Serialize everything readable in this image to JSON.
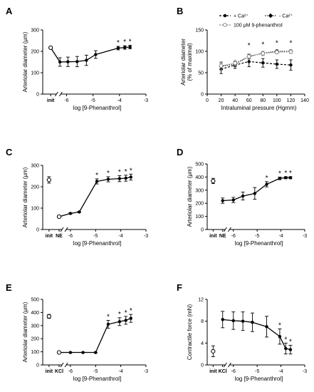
{
  "colors": {
    "ink": "#000000",
    "gray": "#8c8c8c",
    "light": "#bdbdbd"
  },
  "chart_data": [
    {
      "id": "A",
      "type": "line",
      "panel_label": "A",
      "ylabel": "Arteriolar diameter (μm)",
      "xlabel": "log [9-Phenanthrol]",
      "ylim": [
        0,
        300
      ],
      "yticks": [
        0,
        100,
        200,
        300
      ],
      "xlim": [
        -6.9,
        -3
      ],
      "xticks": [
        -6,
        -5,
        -4,
        -3
      ],
      "xtick_labels": [
        "-6",
        "-5",
        "-4",
        "-3"
      ],
      "special_ticks": [
        {
          "x": -6.6,
          "label": "init"
        }
      ],
      "break_x": -6.3,
      "points": [
        {
          "x": -6.6,
          "y": 217,
          "err": 5,
          "marker": "open-circle",
          "star": ""
        },
        {
          "x": -6.25,
          "y": 150,
          "err": 20,
          "marker": "dot",
          "star": ""
        },
        {
          "x": -5.95,
          "y": 151,
          "err": 22,
          "marker": "dot",
          "star": ""
        },
        {
          "x": -5.6,
          "y": 152,
          "err": 24,
          "marker": "dot",
          "star": ""
        },
        {
          "x": -5.25,
          "y": 158,
          "err": 24,
          "marker": "dot",
          "star": ""
        },
        {
          "x": -4.9,
          "y": 185,
          "err": 18,
          "marker": "dot",
          "star": ""
        },
        {
          "x": -4.05,
          "y": 215,
          "err": 8,
          "marker": "dot",
          "star": "*"
        },
        {
          "x": -3.8,
          "y": 218,
          "err": 8,
          "marker": "dot",
          "star": "*"
        },
        {
          "x": -3.6,
          "y": 220,
          "err": 8,
          "marker": "dot",
          "star": "*"
        }
      ]
    },
    {
      "id": "B",
      "type": "line",
      "panel_label": "B",
      "ylabel": "Arteriolar diameter\n(% of maximal)",
      "xlabel": "Intraluminal pressure (Hgmm)",
      "ylim": [
        0,
        150
      ],
      "yticks": [
        0,
        50,
        100,
        150
      ],
      "xlim": [
        0,
        140
      ],
      "xticks": [
        0,
        20,
        40,
        60,
        80,
        100,
        120,
        140
      ],
      "xtick_labels": [
        "0",
        "20",
        "40",
        "60",
        "80",
        "100",
        "120",
        "140"
      ],
      "legend": [
        {
          "label": "+ Ca²⁺",
          "marker": "dot",
          "style": "dash"
        },
        {
          "label": "- Ca²⁺",
          "marker": "diamond",
          "style": "dot"
        },
        {
          "label": "100 μM 9-phenanthrol",
          "marker": "open-circle",
          "style": "gray"
        }
      ],
      "series": [
        {
          "name": "+ Ca²⁺",
          "marker": "dot",
          "style": "dash",
          "x": [
            20,
            40,
            60,
            80,
            100,
            120
          ],
          "values": [
            58,
            68,
            76,
            73,
            70,
            68
          ],
          "err": [
            10,
            8,
            12,
            10,
            10,
            12
          ]
        },
        {
          "name": "- Ca²⁺",
          "marker": "diamond",
          "style": "dot",
          "x": [
            20,
            40,
            60,
            80,
            100,
            120
          ],
          "values": [
            65,
            70,
            88,
            96,
            100,
            100
          ],
          "err": [
            8,
            6,
            5,
            4,
            3,
            3
          ]
        },
        {
          "name": "100 μM 9-phenanthrol",
          "marker": "open-circle",
          "style": "gray",
          "x": [
            20,
            40,
            60,
            80,
            100,
            120
          ],
          "values": [
            66,
            72,
            88,
            95,
            98,
            99
          ],
          "err": [
            10,
            7,
            6,
            5,
            4,
            4
          ]
        }
      ],
      "stars": [
        {
          "x": 60,
          "y": 108,
          "text": "*"
        },
        {
          "x": 80,
          "y": 111,
          "text": "*"
        },
        {
          "x": 100,
          "y": 114,
          "text": "*"
        },
        {
          "x": 120,
          "y": 114,
          "text": "*"
        }
      ]
    },
    {
      "id": "C",
      "type": "line",
      "panel_label": "C",
      "ylabel": "Arteriolar diameter (μm)",
      "xlabel": "log [9-Phenanthrol]",
      "ylim": [
        0,
        300
      ],
      "yticks": [
        0,
        100,
        200,
        300
      ],
      "xlim": [
        -7.1,
        -3
      ],
      "xticks": [
        -6,
        -5,
        -4,
        -3
      ],
      "xtick_labels": [
        "-6",
        "-5",
        "-4",
        "-3"
      ],
      "special_ticks": [
        {
          "x": -6.85,
          "label": "init"
        },
        {
          "x": -6.45,
          "label": "NE"
        }
      ],
      "break_x": -6.25,
      "points": [
        {
          "x": -6.85,
          "y": 232,
          "err": 15,
          "marker": "open-circle",
          "star": ""
        },
        {
          "x": -6.45,
          "y": 60,
          "err": 3,
          "marker": "open-circle",
          "star": ""
        },
        {
          "x": -6.0,
          "y": 75,
          "err": 3,
          "marker": "dot",
          "star": ""
        },
        {
          "x": -5.65,
          "y": 82,
          "err": 3,
          "marker": "dot",
          "star": ""
        },
        {
          "x": -4.95,
          "y": 225,
          "err": 12,
          "marker": "dot",
          "star": "*"
        },
        {
          "x": -4.5,
          "y": 235,
          "err": 12,
          "marker": "dot",
          "star": "*"
        },
        {
          "x": -4.05,
          "y": 238,
          "err": 14,
          "marker": "dot",
          "star": "*"
        },
        {
          "x": -3.8,
          "y": 240,
          "err": 14,
          "marker": "dot",
          "star": "*"
        },
        {
          "x": -3.6,
          "y": 245,
          "err": 14,
          "marker": "dot",
          "star": "*"
        }
      ]
    },
    {
      "id": "D",
      "type": "line",
      "panel_label": "D",
      "ylabel": "Arteriolar diameter (μm)",
      "xlabel": "log [9-Phenanthrol]",
      "ylim": [
        0,
        500
      ],
      "yticks": [
        0,
        100,
        200,
        300,
        400,
        500
      ],
      "xlim": [
        -7.1,
        -3
      ],
      "xticks": [
        -6,
        -5,
        -4,
        -3
      ],
      "xtick_labels": [
        "-6",
        "-5",
        "-4",
        "-3"
      ],
      "special_ticks": [
        {
          "x": -6.85,
          "label": "init"
        },
        {
          "x": -6.45,
          "label": "NE"
        }
      ],
      "break_x": -6.25,
      "points": [
        {
          "x": -6.85,
          "y": 370,
          "err": 20,
          "marker": "open-circle",
          "star": ""
        },
        {
          "x": -6.45,
          "y": 220,
          "err": 20,
          "marker": "dot",
          "star": ""
        },
        {
          "x": -6.0,
          "y": 225,
          "err": 20,
          "marker": "dot",
          "star": ""
        },
        {
          "x": -5.6,
          "y": 255,
          "err": 30,
          "marker": "dot",
          "star": ""
        },
        {
          "x": -5.1,
          "y": 275,
          "err": 45,
          "marker": "dot",
          "star": ""
        },
        {
          "x": -4.6,
          "y": 345,
          "err": 20,
          "marker": "dot",
          "star": "*"
        },
        {
          "x": -4.05,
          "y": 390,
          "err": 10,
          "marker": "dot",
          "star": "*"
        },
        {
          "x": -3.8,
          "y": 395,
          "err": 8,
          "marker": "dot",
          "star": "*"
        },
        {
          "x": -3.6,
          "y": 395,
          "err": 8,
          "marker": "dot",
          "star": "*"
        }
      ]
    },
    {
      "id": "E",
      "type": "line",
      "panel_label": "E",
      "ylabel": "Arteriolar diameter (μm)",
      "xlabel": "log [9-Phenanthrol]",
      "ylim": [
        0,
        500
      ],
      "yticks": [
        0,
        100,
        200,
        300,
        400,
        500
      ],
      "xlim": [
        -7.1,
        -3
      ],
      "xticks": [
        -6,
        -5,
        -4,
        -3
      ],
      "xtick_labels": [
        "-6",
        "-5",
        "-4",
        "-3"
      ],
      "special_ticks": [
        {
          "x": -6.85,
          "label": "init"
        },
        {
          "x": -6.45,
          "label": "KCl"
        }
      ],
      "break_x": -6.25,
      "points": [
        {
          "x": -6.85,
          "y": 370,
          "err": 15,
          "marker": "open-circle",
          "star": ""
        },
        {
          "x": -6.45,
          "y": 95,
          "err": 5,
          "marker": "open-circle",
          "star": ""
        },
        {
          "x": -6.0,
          "y": 95,
          "err": 3,
          "marker": "dot",
          "star": ""
        },
        {
          "x": -5.5,
          "y": 95,
          "err": 3,
          "marker": "dot",
          "star": ""
        },
        {
          "x": -5.0,
          "y": 95,
          "err": 3,
          "marker": "dot",
          "star": ""
        },
        {
          "x": -4.5,
          "y": 310,
          "err": 30,
          "marker": "dot",
          "star": "*"
        },
        {
          "x": -4.05,
          "y": 330,
          "err": 30,
          "marker": "dot",
          "star": "*"
        },
        {
          "x": -3.8,
          "y": 340,
          "err": 30,
          "marker": "dot",
          "star": "*"
        },
        {
          "x": -3.6,
          "y": 355,
          "err": 30,
          "marker": "dot",
          "star": "*"
        }
      ]
    },
    {
      "id": "F",
      "type": "line",
      "panel_label": "F",
      "ylabel": "Contractile force (mN)",
      "xlabel": "log [9-Phenanthrol]",
      "ylim": [
        0,
        12
      ],
      "yticks": [
        0,
        4,
        8,
        12
      ],
      "xlim": [
        -7.1,
        -3
      ],
      "xticks": [
        -6,
        -5,
        -4,
        -3
      ],
      "xtick_labels": [
        "-6",
        "-5",
        "-4",
        "-3"
      ],
      "special_ticks": [
        {
          "x": -6.85,
          "label": "init"
        },
        {
          "x": -6.45,
          "label": "KCl"
        }
      ],
      "break_x": -6.25,
      "points": [
        {
          "x": -6.85,
          "y": 2.5,
          "err": 1.0,
          "marker": "open-circle",
          "star": ""
        },
        {
          "x": -6.45,
          "y": 8.3,
          "err": 1.5,
          "marker": "dot",
          "star": ""
        },
        {
          "x": -6.0,
          "y": 8.1,
          "err": 1.6,
          "marker": "dot",
          "star": ""
        },
        {
          "x": -5.6,
          "y": 8.0,
          "err": 1.7,
          "marker": "dot",
          "star": ""
        },
        {
          "x": -5.2,
          "y": 7.8,
          "err": 1.7,
          "marker": "dot",
          "star": ""
        },
        {
          "x": -4.6,
          "y": 7.0,
          "err": 1.9,
          "marker": "dot",
          "star": ""
        },
        {
          "x": -4.05,
          "y": 5.2,
          "err": 1.4,
          "marker": "dot",
          "star": "*"
        },
        {
          "x": -3.8,
          "y": 3.0,
          "err": 1.0,
          "marker": "dot",
          "star": "*"
        },
        {
          "x": -3.6,
          "y": 2.8,
          "err": 0.8,
          "marker": "dot",
          "star": "*"
        }
      ]
    }
  ]
}
